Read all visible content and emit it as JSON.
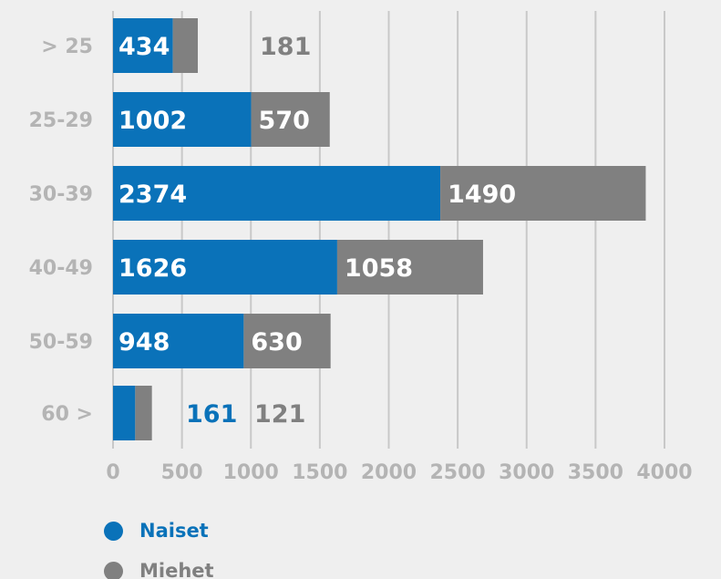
{
  "chart_data": {
    "type": "bar",
    "orientation": "horizontal",
    "stacked": true,
    "categories": [
      "> 25",
      "25-29",
      "30-39",
      "40-49",
      "50-59",
      "60 >"
    ],
    "series": [
      {
        "name": "Naiset",
        "values": [
          434,
          1002,
          2374,
          1626,
          948,
          161
        ],
        "color": "#0a72b9"
      },
      {
        "name": "Miehet",
        "values": [
          181,
          570,
          1490,
          1058,
          630,
          121
        ],
        "color": "#808080"
      }
    ],
    "xlim": [
      0,
      4000
    ],
    "xticks": [
      0,
      500,
      1000,
      1500,
      2000,
      2500,
      3000,
      3500,
      4000
    ],
    "grid": "vertical",
    "legend": "bottom-left"
  },
  "legend": {
    "items": [
      {
        "label": "Naiset",
        "color": "#0a72b9"
      },
      {
        "label": "Miehet",
        "color": "#808080"
      }
    ]
  }
}
